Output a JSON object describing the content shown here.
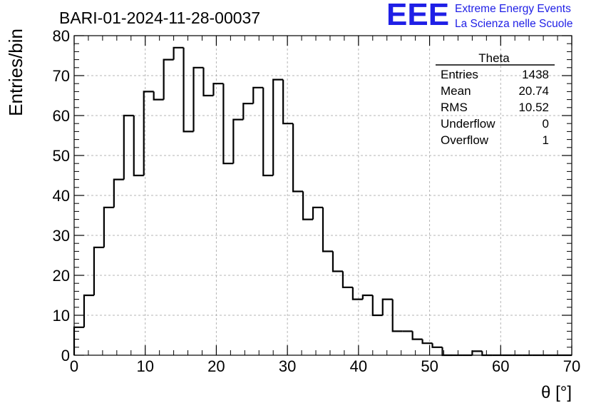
{
  "title": "BARI-01-2024-11-28-00037",
  "brand": {
    "logo": "EEE",
    "line1": "Extreme Energy Events",
    "line2": "La Scienza nelle Scuole",
    "color": "#1f1fe6"
  },
  "stats": {
    "name": "Theta",
    "rows": [
      {
        "label": "Entries",
        "value": "1438"
      },
      {
        "label": "Mean",
        "value": "20.74"
      },
      {
        "label": "RMS",
        "value": "10.52"
      },
      {
        "label": "Underflow",
        "value": "0"
      },
      {
        "label": "Overflow",
        "value": "1"
      }
    ]
  },
  "chart_data": {
    "type": "histogram",
    "xlabel": "θ [°]",
    "ylabel": "Entries/bin",
    "xlim": [
      0,
      70
    ],
    "ylim": [
      0,
      80
    ],
    "grid": true,
    "x_ticks": [
      0,
      10,
      20,
      30,
      40,
      50,
      60,
      70
    ],
    "y_ticks": [
      0,
      10,
      20,
      30,
      40,
      50,
      60,
      70,
      80
    ],
    "bin_width": 1.4,
    "values": [
      7,
      15,
      27,
      37,
      44,
      60,
      45,
      66,
      64,
      74,
      77,
      56,
      72,
      65,
      68,
      48,
      59,
      63,
      67,
      45,
      69,
      58,
      41,
      34,
      37,
      26,
      21,
      17,
      14,
      15,
      10,
      14,
      6,
      6,
      4,
      3,
      2,
      0,
      0,
      0,
      1,
      0,
      0,
      0,
      0,
      0,
      0,
      0,
      0,
      0
    ],
    "line_color": "#000000",
    "grid_color": "#b4b4b4"
  }
}
